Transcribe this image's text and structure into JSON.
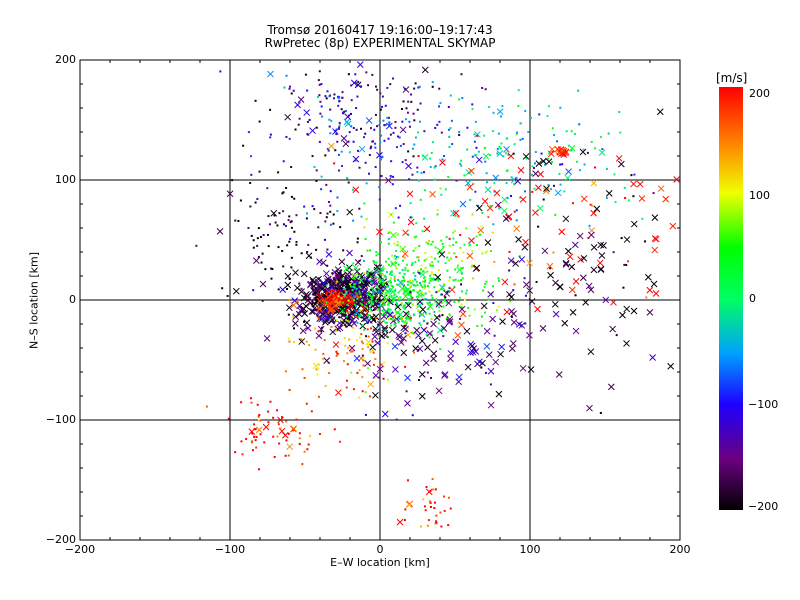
{
  "chart_data": {
    "type": "scatter",
    "title": "Tromsø 20160417 19:16:00–19:17:43",
    "subtitle": "RwPretec (8p) EXPERIMENTAL SKYMAP",
    "xlabel": "E–W location [km]",
    "ylabel": "N–S location [km]",
    "xlim": [
      -200,
      200
    ],
    "ylim": [
      -200,
      200
    ],
    "x_ticks": [
      "−200",
      "−100",
      "0",
      "100",
      "200"
    ],
    "y_ticks": [
      "200",
      "100",
      "0",
      "−100",
      "−200"
    ],
    "grid": true,
    "colorbar": {
      "unit_label": "[m/s]",
      "range": [
        -200,
        200
      ],
      "ticks": [
        "200",
        "100",
        "0",
        "−100",
        "−200"
      ],
      "colormap": "rainbow (black → purple → blue → cyan → green → yellow → orange → red)"
    },
    "marker_types": [
      "dot",
      "x"
    ],
    "clusters": [
      {
        "center": [
          -25,
          2
        ],
        "spread": [
          14,
          12
        ],
        "velocity": -180,
        "markers": "x"
      },
      {
        "center": [
          -28,
          0
        ],
        "spread": [
          6,
          4
        ],
        "velocity": 200,
        "markers": "x"
      },
      {
        "center": [
          10,
          5
        ],
        "spread": [
          18,
          15
        ],
        "velocity": 10,
        "markers": "dot"
      },
      {
        "center": [
          30,
          25
        ],
        "spread": [
          25,
          25
        ],
        "velocity": 60,
        "markers": "dot"
      },
      {
        "center": [
          -60,
          60
        ],
        "spread": [
          25,
          30
        ],
        "velocity": -190,
        "markers": "dot"
      },
      {
        "center": [
          -20,
          160
        ],
        "spread": [
          30,
          25
        ],
        "velocity": -150,
        "markers": "dot"
      },
      {
        "center": [
          0,
          130
        ],
        "spread": [
          40,
          30
        ],
        "velocity": -80,
        "markers": "dot"
      },
      {
        "center": [
          90,
          120
        ],
        "spread": [
          40,
          25
        ],
        "velocity": -20,
        "markers": "dot"
      },
      {
        "center": [
          120,
          124
        ],
        "spread": [
          3,
          2
        ],
        "velocity": 200,
        "markers": "x"
      },
      {
        "center": [
          -70,
          -110
        ],
        "spread": [
          15,
          15
        ],
        "velocity": 200,
        "markers": "dot"
      },
      {
        "center": [
          -15,
          -40
        ],
        "spread": [
          20,
          20
        ],
        "velocity": 150,
        "markers": "dot"
      },
      {
        "center": [
          40,
          -30
        ],
        "spread": [
          45,
          30
        ],
        "velocity": -150,
        "markers": "x"
      },
      {
        "center": [
          35,
          -170
        ],
        "spread": [
          10,
          10
        ],
        "velocity": 200,
        "markers": "dot"
      },
      {
        "center": [
          100,
          60
        ],
        "spread": [
          60,
          40
        ],
        "velocity": 200,
        "markers": "x"
      },
      {
        "center": [
          140,
          30
        ],
        "spread": [
          40,
          50
        ],
        "velocity": -190,
        "markers": "x"
      }
    ]
  }
}
